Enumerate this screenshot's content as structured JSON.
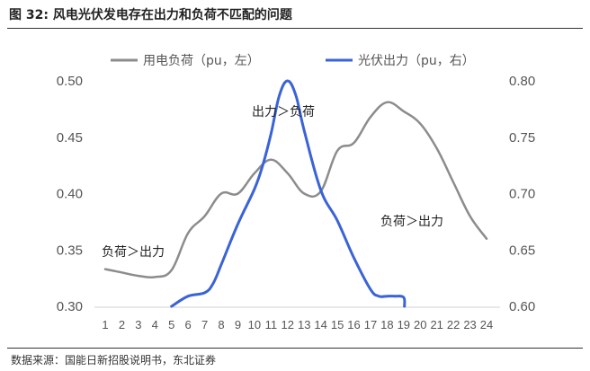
{
  "figure_title": "图 32: 风电光伏发电存在出力和负荷不匹配的问题",
  "source": "数据来源：国能日新招股说明书，东北证券",
  "colors": {
    "load": "#8c8c8c",
    "pv": "#3a63d6"
  },
  "chart_data": {
    "type": "line",
    "title": "",
    "xlabel": "",
    "ylabel": "",
    "y2label": "",
    "x": [
      1,
      2,
      3,
      4,
      5,
      6,
      7,
      8,
      9,
      10,
      11,
      12,
      13,
      14,
      15,
      16,
      17,
      18,
      19,
      20,
      21,
      22,
      23,
      24
    ],
    "x_tick_labels": [
      "1",
      "2",
      "3",
      "4",
      "5",
      "6",
      "7",
      "8",
      "9",
      "10",
      "11",
      "12",
      "13",
      "14",
      "15",
      "16",
      "17",
      "18",
      "19",
      "20",
      "21",
      "22",
      "23",
      "24"
    ],
    "ylim": [
      0.3,
      0.5
    ],
    "y_ticks": [
      "0.30",
      "0.35",
      "0.40",
      "0.45",
      "0.50"
    ],
    "y2lim": [
      0.6,
      0.8
    ],
    "y2_ticks": [
      "0.60",
      "0.65",
      "0.70",
      "0.75",
      "0.80"
    ],
    "grid": false,
    "legend_position": "top",
    "series": [
      {
        "name": "用电负荷（pu，左）",
        "axis": "left",
        "x": [
          1,
          2,
          3,
          4,
          5,
          6,
          7,
          8,
          9,
          10,
          11,
          12,
          13,
          14,
          15,
          16,
          17,
          18,
          19,
          20,
          21,
          22,
          23,
          24
        ],
        "values": [
          0.333,
          0.33,
          0.327,
          0.326,
          0.332,
          0.365,
          0.38,
          0.4,
          0.4,
          0.418,
          0.43,
          0.418,
          0.4,
          0.402,
          0.438,
          0.445,
          0.468,
          0.481,
          0.473,
          0.462,
          0.44,
          0.41,
          0.38,
          0.36
        ]
      },
      {
        "name": "光伏出力（pu，右）",
        "axis": "right",
        "x": [
          5,
          6,
          7,
          7.5,
          8,
          9,
          10,
          10.5,
          11,
          11.5,
          12,
          12.5,
          13,
          14,
          15,
          16,
          17,
          17.5,
          18,
          18.5,
          19,
          19.05
        ],
        "values": [
          0.6,
          0.609,
          0.612,
          0.62,
          0.637,
          0.673,
          0.704,
          0.725,
          0.753,
          0.787,
          0.8,
          0.787,
          0.756,
          0.703,
          0.676,
          0.643,
          0.615,
          0.609,
          0.609,
          0.609,
          0.608,
          0.6
        ]
      }
    ],
    "annotations": [
      "负荷＞出力",
      "出力＞负荷",
      "负荷＞出力"
    ]
  }
}
